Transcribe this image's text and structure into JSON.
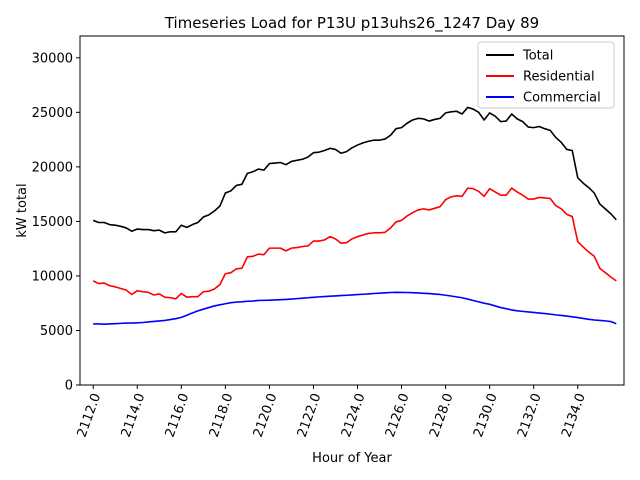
{
  "chart_data": {
    "type": "line",
    "title": "Timeseries Load for P13U p13uhs26_1247  Day 89",
    "xlabel": "Hour of Year",
    "ylabel": "kW total",
    "xlim": [
      2111.4,
      2136.1
    ],
    "ylim": [
      0,
      32000
    ],
    "x_ticks": [
      2112,
      2114,
      2116,
      2118,
      2120,
      2122,
      2124,
      2126,
      2128,
      2130,
      2132,
      2134
    ],
    "x_tick_labels": [
      "2112.0",
      "2114.0",
      "2116.0",
      "2118.0",
      "2120.0",
      "2122.0",
      "2124.0",
      "2126.0",
      "2128.0",
      "2130.0",
      "2132.0",
      "2134.0"
    ],
    "y_ticks": [
      0,
      5000,
      10000,
      15000,
      20000,
      25000,
      30000
    ],
    "y_tick_labels": [
      "0",
      "5000",
      "10000",
      "15000",
      "20000",
      "25000",
      "30000"
    ],
    "legend_position": "top-right",
    "x_start": 2112.0,
    "x_step": 0.25,
    "series": [
      {
        "name": "Total",
        "color": "#000000",
        "values": [
          15100,
          14900,
          14900,
          14700,
          14650,
          14550,
          14400,
          14100,
          14300,
          14250,
          14250,
          14150,
          14200,
          13950,
          14050,
          14050,
          14650,
          14450,
          14700,
          14900,
          15400,
          15600,
          15950,
          16400,
          17600,
          17800,
          18300,
          18400,
          19400,
          19550,
          19800,
          19700,
          20300,
          20350,
          20400,
          20200,
          20500,
          20600,
          20700,
          20900,
          21300,
          21350,
          21500,
          21700,
          21600,
          21250,
          21400,
          21750,
          22000,
          22200,
          22350,
          22450,
          22450,
          22550,
          22900,
          23500,
          23600,
          24000,
          24300,
          24450,
          24400,
          24200,
          24350,
          24450,
          24950,
          25050,
          25100,
          24850,
          25450,
          25300,
          25000,
          24300,
          24950,
          24650,
          24150,
          24200,
          24850,
          24400,
          24150,
          23650,
          23600,
          23700,
          23500,
          23350,
          22700,
          22250,
          21600,
          21500,
          19000,
          18500,
          18100,
          17600,
          16600,
          16150,
          15700,
          15150
        ]
      },
      {
        "name": "Residential",
        "color": "#ff0000",
        "values": [
          9550,
          9300,
          9350,
          9100,
          9000,
          8850,
          8700,
          8300,
          8650,
          8550,
          8500,
          8250,
          8350,
          8050,
          8000,
          7900,
          8400,
          8050,
          8100,
          8100,
          8550,
          8600,
          8800,
          9200,
          10200,
          10300,
          10650,
          10700,
          11750,
          11800,
          12000,
          11950,
          12550,
          12550,
          12550,
          12300,
          12550,
          12600,
          12700,
          12750,
          13200,
          13200,
          13300,
          13600,
          13400,
          13000,
          13050,
          13400,
          13600,
          13750,
          13900,
          13950,
          13950,
          14000,
          14400,
          14950,
          15100,
          15500,
          15800,
          16050,
          16150,
          16050,
          16200,
          16350,
          17000,
          17250,
          17350,
          17300,
          18050,
          18000,
          17750,
          17300,
          18000,
          17700,
          17400,
          17400,
          18050,
          17700,
          17400,
          17050,
          17050,
          17200,
          17150,
          17100,
          16450,
          16150,
          15650,
          15450,
          13150,
          12650,
          12200,
          11800,
          10700,
          10300,
          9900,
          9550
        ]
      },
      {
        "name": "Commercial",
        "color": "#0000ff",
        "values": [
          5600,
          5600,
          5580,
          5600,
          5620,
          5650,
          5680,
          5680,
          5700,
          5730,
          5780,
          5830,
          5870,
          5920,
          6000,
          6080,
          6200,
          6400,
          6600,
          6800,
          6950,
          7100,
          7250,
          7350,
          7450,
          7550,
          7600,
          7630,
          7680,
          7700,
          7750,
          7760,
          7780,
          7800,
          7820,
          7850,
          7880,
          7920,
          7960,
          8000,
          8040,
          8080,
          8110,
          8140,
          8170,
          8200,
          8230,
          8260,
          8290,
          8320,
          8350,
          8390,
          8420,
          8450,
          8480,
          8500,
          8490,
          8480,
          8460,
          8440,
          8410,
          8380,
          8340,
          8300,
          8230,
          8160,
          8080,
          8000,
          7880,
          7750,
          7620,
          7500,
          7400,
          7250,
          7100,
          7000,
          6880,
          6800,
          6750,
          6700,
          6650,
          6600,
          6550,
          6500,
          6430,
          6380,
          6320,
          6250,
          6180,
          6100,
          6020,
          5960,
          5920,
          5880,
          5820,
          5620
        ]
      }
    ]
  }
}
